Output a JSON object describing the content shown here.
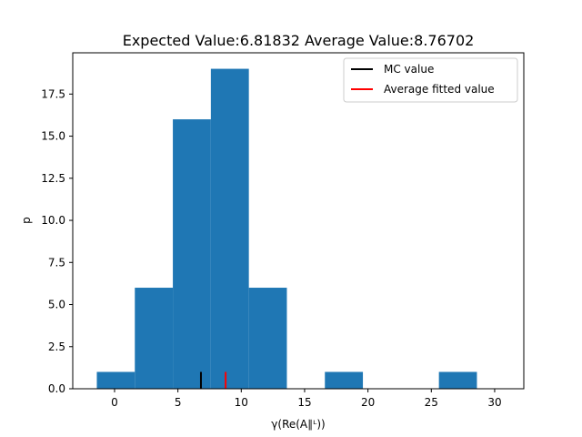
{
  "chart_data": {
    "type": "bar",
    "title": "Expected Value:6.81832 Average Value:8.76702",
    "xlabel": "γ(Re(A∥ᴸ))",
    "ylabel": "p",
    "xlim": [
      -3.3,
      32.3
    ],
    "ylim": [
      0,
      19.95
    ],
    "grid": false,
    "legend_position": "upper right",
    "bar_color": "#1f77b4",
    "bins": [
      {
        "left": -1.4,
        "right": 1.6,
        "value": 1
      },
      {
        "left": 1.6,
        "right": 4.6,
        "value": 6
      },
      {
        "left": 4.6,
        "right": 7.6,
        "value": 16
      },
      {
        "left": 7.6,
        "right": 10.6,
        "value": 19
      },
      {
        "left": 10.6,
        "right": 13.6,
        "value": 6
      },
      {
        "left": 13.6,
        "right": 16.6,
        "value": 0
      },
      {
        "left": 16.6,
        "right": 19.6,
        "value": 1
      },
      {
        "left": 19.6,
        "right": 22.6,
        "value": 0
      },
      {
        "left": 22.6,
        "right": 25.6,
        "value": 0
      },
      {
        "left": 25.6,
        "right": 28.6,
        "value": 1
      }
    ],
    "markers": [
      {
        "name": "MC value",
        "x": 6.81832,
        "height": 1,
        "color": "#000000"
      },
      {
        "name": "Average fitted value",
        "x": 8.76702,
        "height": 1,
        "color": "#ff0000"
      }
    ],
    "xticks": [
      {
        "value": 0,
        "label": "0"
      },
      {
        "value": 5,
        "label": "5"
      },
      {
        "value": 10,
        "label": "10"
      },
      {
        "value": 15,
        "label": "15"
      },
      {
        "value": 20,
        "label": "20"
      },
      {
        "value": 25,
        "label": "25"
      },
      {
        "value": 30,
        "label": "30"
      }
    ],
    "yticks": [
      {
        "value": 0,
        "label": "0.0"
      },
      {
        "value": 2.5,
        "label": "2.5"
      },
      {
        "value": 5,
        "label": "5.0"
      },
      {
        "value": 7.5,
        "label": "7.5"
      },
      {
        "value": 10,
        "label": "10.0"
      },
      {
        "value": 12.5,
        "label": "12.5"
      },
      {
        "value": 15,
        "label": "15.0"
      },
      {
        "value": 17.5,
        "label": "17.5"
      }
    ]
  }
}
